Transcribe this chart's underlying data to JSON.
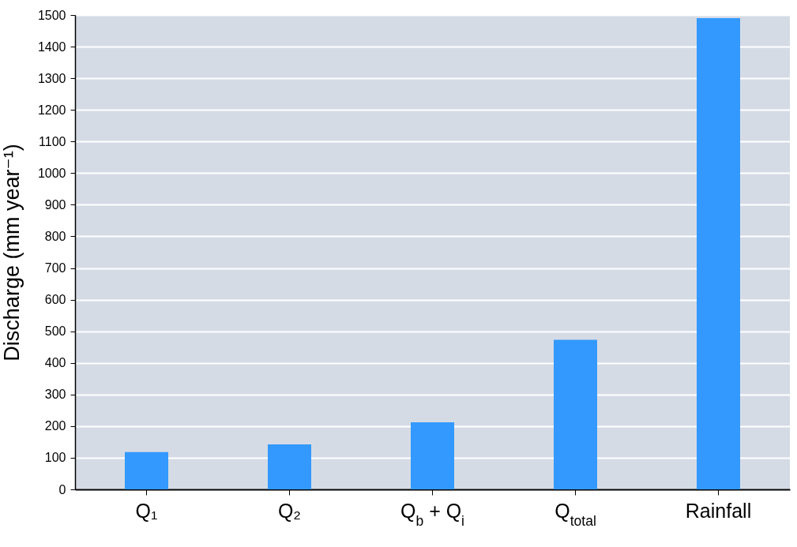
{
  "chart_data": {
    "type": "bar",
    "ylabel": "Discharge (mm year⁻¹)",
    "categories": [
      "Q₁",
      "Q₂",
      "Q$_{b}$ + Q$_{i}$",
      "Q$_{total}$",
      "Rainfall"
    ],
    "values": [
      118,
      142,
      212,
      473,
      1490
    ],
    "color": "#3399ff",
    "ylim": [
      0,
      1500
    ],
    "yticks": [
      0,
      100,
      200,
      300,
      400,
      500,
      600,
      700,
      800,
      900,
      1000,
      1100,
      1200,
      1300,
      1400,
      1500
    ],
    "grid": "y"
  }
}
